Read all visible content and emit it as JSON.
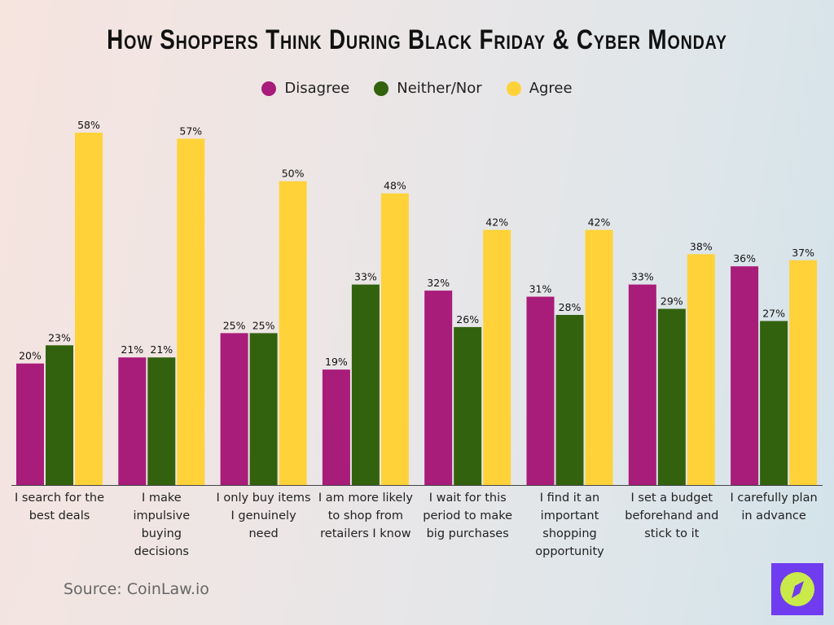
{
  "chart_data": {
    "type": "bar",
    "title": "How Shoppers Think During Black Friday & Cyber Monday",
    "categories": [
      "I search for the best deals",
      "I make impulsive buying decisions",
      "I only buy items I genuinely need",
      "I am more likely to shop from retailers I know",
      "I wait for this period to make big purchases",
      "I find it an important shopping opportunity",
      "I set a budget beforehand and stick to it",
      "I carefully plan in advance"
    ],
    "series": [
      {
        "name": "Disagree",
        "color": "#a81c7a",
        "values": [
          20,
          21,
          25,
          19,
          32,
          31,
          33,
          36
        ]
      },
      {
        "name": "Neither/Nor",
        "color": "#33620f",
        "values": [
          23,
          21,
          25,
          33,
          26,
          28,
          29,
          27
        ]
      },
      {
        "name": "Agree",
        "color": "#ffd23a",
        "values": [
          58,
          57,
          50,
          48,
          42,
          42,
          38,
          37
        ]
      }
    ],
    "value_suffix": "%",
    "ylim": [
      0,
      58
    ],
    "grid": false,
    "legend": "top-center"
  },
  "source": "Source: CoinLaw.io",
  "logo": {
    "icon": "compass-icon",
    "bg": "#6f3cf0",
    "fg": "#c9ea4a"
  }
}
